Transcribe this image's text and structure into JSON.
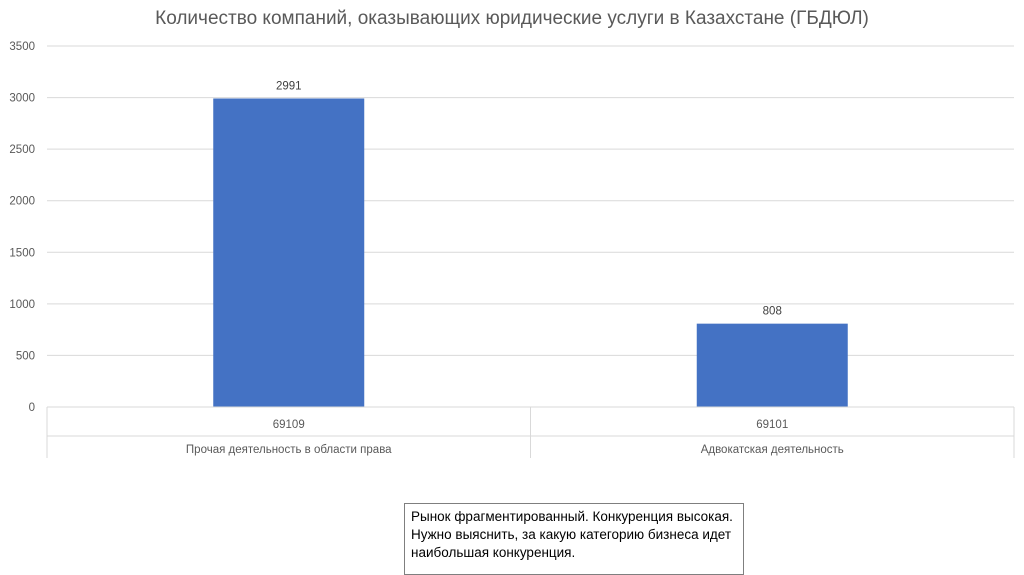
{
  "chart_data": {
    "type": "bar",
    "title": "Количество компаний, оказывающих юридические услуги в Казахстане (ГБДЮЛ)",
    "categories": [
      {
        "code": "69109",
        "name": "Прочая деятельность в области права"
      },
      {
        "code": "69101",
        "name": "Адвокатская деятельность"
      }
    ],
    "values": [
      2991,
      808
    ],
    "data_labels": [
      "2991",
      "808"
    ],
    "ylim": [
      0,
      3500
    ],
    "yticks": [
      "0",
      "500",
      "1000",
      "1500",
      "2000",
      "2500",
      "3000",
      "3500"
    ],
    "grid": true,
    "bar_color": "#4472C4"
  },
  "note": {
    "text": "Рынок фрагментированный. Конкуренция высокая. Нужно выяснить, за какую категорию бизнеса идет наибольшая конкуренция."
  }
}
